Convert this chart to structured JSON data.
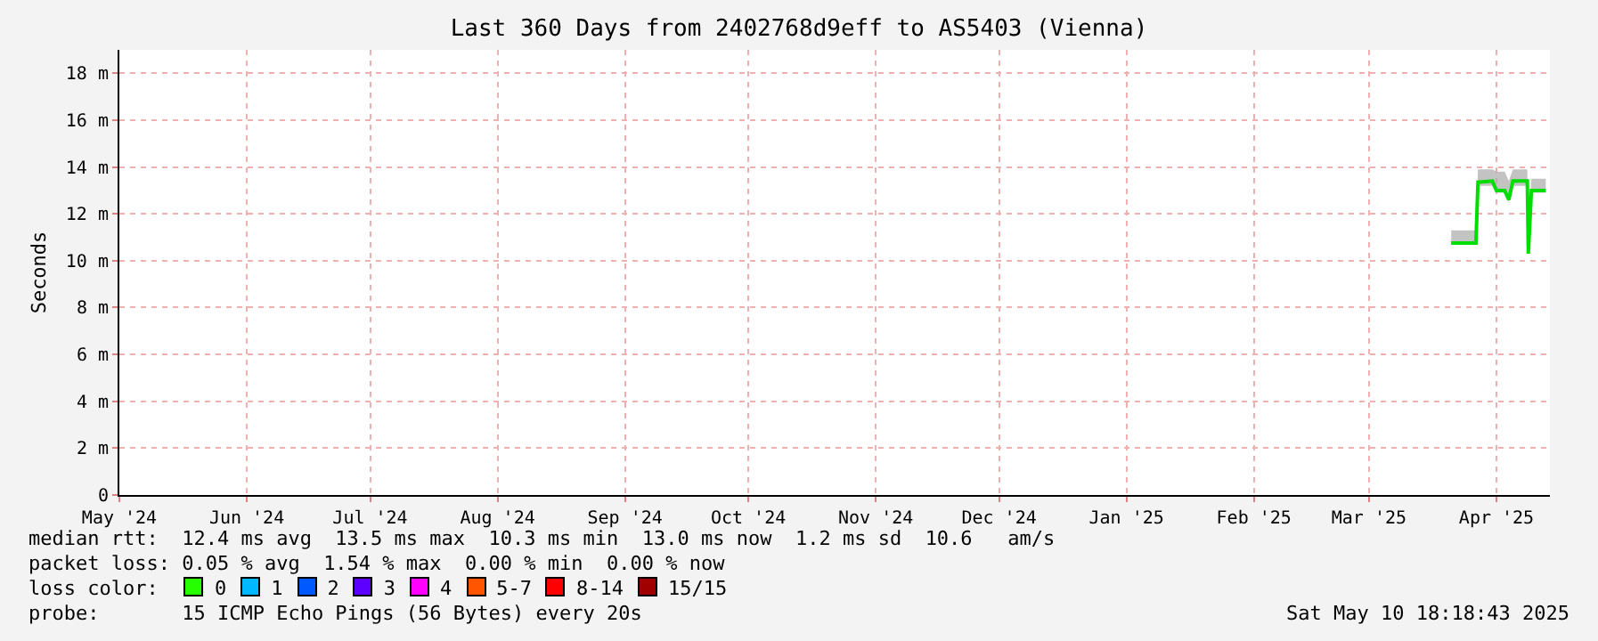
{
  "chart_data": {
    "type": "line",
    "title": "Last 360 Days from 2402768d9eff to AS5403 (Vienna)",
    "ylabel": "Seconds",
    "xlim": [
      "2024-05-16",
      "2025-04-29"
    ],
    "xticks": [
      {
        "value": "2024-05-16",
        "label": "May '24"
      },
      {
        "value": "2024-06-16",
        "label": "Jun '24"
      },
      {
        "value": "2024-07-16",
        "label": "Jul '24"
      },
      {
        "value": "2024-08-16",
        "label": "Aug '24"
      },
      {
        "value": "2024-09-16",
        "label": "Sep '24"
      },
      {
        "value": "2024-10-16",
        "label": "Oct '24"
      },
      {
        "value": "2024-11-16",
        "label": "Nov '24"
      },
      {
        "value": "2024-12-16",
        "label": "Dec '24"
      },
      {
        "value": "2025-01-16",
        "label": "Jan '25"
      },
      {
        "value": "2025-02-16",
        "label": "Feb '25"
      },
      {
        "value": "2025-03-16",
        "label": "Mar '25"
      },
      {
        "value": "2025-04-16",
        "label": "Apr '25"
      }
    ],
    "ylim": [
      0,
      19
    ],
    "yticks": [
      0,
      {
        "value": 2,
        "label": "2 m"
      },
      {
        "value": 4,
        "label": "4 m"
      },
      {
        "value": 6,
        "label": "6 m"
      },
      {
        "value": 8,
        "label": "8 m"
      },
      {
        "value": 10,
        "label": "10 m"
      },
      {
        "value": 12,
        "label": "12 m"
      },
      {
        "value": 14,
        "label": "14 m"
      },
      {
        "value": 16,
        "label": "16 m"
      },
      {
        "value": 18,
        "label": "18 m"
      }
    ],
    "grid": true,
    "marker": "none",
    "line_style": "solid",
    "x": [
      "2025-04-05",
      "2025-04-11",
      "2025-04-11T12:00",
      "2025-04-15",
      "2025-04-16",
      "2025-04-18",
      "2025-04-19",
      "2025-04-20",
      "2025-04-23T12:00",
      "2025-04-23T18:00",
      "2025-04-24T12:00",
      "2025-04-28"
    ],
    "series": [
      {
        "color": "#00dd00",
        "values": [
          10.75,
          10.75,
          13.35,
          13.4,
          13.0,
          13.0,
          12.6,
          13.4,
          13.4,
          10.3,
          13.0,
          13.0
        ],
        "lower": [
          10.7,
          10.7,
          13.2,
          13.2,
          12.9,
          12.9,
          12.5,
          13.2,
          13.2,
          10.2,
          12.9,
          12.9
        ],
        "upper": [
          11.3,
          11.3,
          13.9,
          13.9,
          13.8,
          13.8,
          13.4,
          13.9,
          13.9,
          10.8,
          13.5,
          13.5
        ]
      }
    ],
    "annotations": [
      "median rtt:  12.4 ms avg  13.5 ms max  10.3 ms min  13.0 ms now  1.2 ms sd  10.6   am/s",
      "packet loss: 0.05 % avg  1.54 % max  0.00 % min  0.00 % now",
      "loss color:",
      "0",
      "1",
      "2",
      "3",
      "4",
      "5-7",
      "8-14",
      "15/15",
      "probe:       15 ICMP Echo Pings (56 Bytes) every 20s",
      "Sat May 10 18:18:43 2025"
    ]
  }
}
